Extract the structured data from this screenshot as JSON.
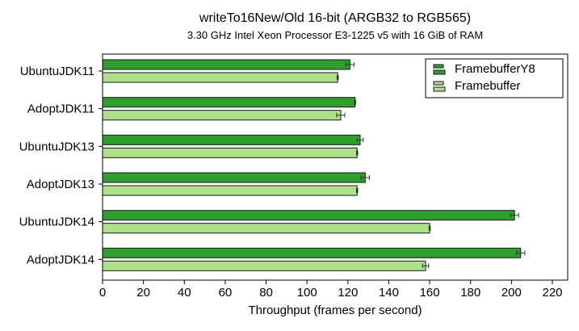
{
  "chart_data": {
    "type": "bar",
    "orientation": "horizontal",
    "title": "writeTo16New/Old 16-bit (ARGB32 to RGB565)",
    "subtitle": "3.30 GHz Intel Xeon Processor E3-1225 v5 with 16 GiB of RAM",
    "xlabel": "Throughput (frames per second)",
    "ylabel": "",
    "xlim": [
      0,
      230
    ],
    "xticks": [
      0,
      20,
      40,
      60,
      80,
      100,
      120,
      140,
      160,
      180,
      200,
      220
    ],
    "categories": [
      "UbuntuJDK11",
      "AdoptJDK11",
      "UbuntuJDK13",
      "AdoptJDK13",
      "UbuntuJDK14",
      "AdoptJDK14"
    ],
    "series": [
      {
        "name": "FramebufferY8",
        "color": "#2e9e2e",
        "values": [
          121.0,
          123.5,
          126.0,
          128.5,
          201.5,
          204.5
        ],
        "errors": [
          2.0,
          0.3,
          1.5,
          2.0,
          2.0,
          2.0
        ]
      },
      {
        "name": "Framebuffer",
        "color": "#aee08a",
        "values": [
          115.0,
          116.5,
          124.5,
          124.5,
          160.0,
          158.0
        ],
        "errors": [
          0.3,
          2.0,
          0.3,
          0.3,
          0.3,
          1.5
        ]
      }
    ],
    "legend_position": "top-right",
    "grid": false
  }
}
